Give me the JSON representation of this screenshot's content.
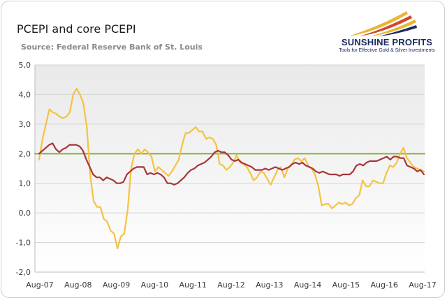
{
  "title": "PCEPI and core PCEPI",
  "subtitle": "Source: Federal Reserve Bank of St. Louis",
  "logo": {
    "name": "SUNSHINE PROFITS",
    "tagline": "Tools for Effective Gold & Silver Investments"
  },
  "colors": {
    "pcepi": "#f5c242",
    "core": "#a8353a",
    "target": "#8cb33e",
    "plot_bg_top": "#e9e9e9",
    "plot_bg_bottom": "#ffffff"
  },
  "chart_data": {
    "type": "line",
    "title": "PCEPI and core PCEPI",
    "xlabel": "",
    "ylabel": "",
    "ylim": [
      -2.0,
      5.0
    ],
    "yticks": [
      "5,0",
      "4,0",
      "3,0",
      "2,0",
      "1,0",
      "0,0",
      "-1,0",
      "-2,0"
    ],
    "xticks": [
      "Aug-07",
      "Aug-08",
      "Aug-09",
      "Aug-10",
      "Aug-11",
      "Aug-12",
      "Aug-13",
      "Aug-14",
      "Aug-15",
      "Aug-16",
      "Aug-17"
    ],
    "grid": "horizontal",
    "x_start": "Aug-07",
    "x_end": "Aug-17",
    "target_line": 2.0,
    "series": [
      {
        "color": "#f5c242",
        "values": [
          1.8,
          2.5,
          3.0,
          3.5,
          3.4,
          3.35,
          3.25,
          3.2,
          3.25,
          3.4,
          4.0,
          4.2,
          4.0,
          3.7,
          2.9,
          1.3,
          0.4,
          0.2,
          0.2,
          -0.2,
          -0.3,
          -0.6,
          -0.7,
          -1.2,
          -0.8,
          -0.7,
          0.1,
          1.5,
          2.0,
          2.15,
          2.0,
          2.15,
          2.05,
          1.9,
          1.4,
          1.55,
          1.45,
          1.35,
          1.25,
          1.4,
          1.6,
          1.8,
          2.3,
          2.7,
          2.7,
          2.8,
          2.9,
          2.75,
          2.75,
          2.5,
          2.55,
          2.5,
          2.3,
          1.65,
          1.6,
          1.45,
          1.55,
          1.7,
          1.95,
          1.7,
          1.65,
          1.55,
          1.35,
          1.1,
          1.2,
          1.4,
          1.35,
          1.15,
          0.95,
          1.2,
          1.45,
          1.55,
          1.2,
          1.5,
          1.6,
          1.8,
          1.85,
          1.75,
          1.85,
          1.6,
          1.5,
          1.3,
          0.9,
          0.25,
          0.3,
          0.3,
          0.15,
          0.25,
          0.35,
          0.3,
          0.35,
          0.25,
          0.3,
          0.5,
          0.6,
          1.1,
          0.9,
          0.9,
          1.1,
          1.05,
          1.0,
          1.0,
          1.35,
          1.6,
          1.55,
          1.7,
          2.0,
          2.2,
          1.85,
          1.7,
          1.55,
          1.5,
          1.45,
          1.4
        ]
      },
      {
        "color": "#a8353a",
        "values": [
          2.0,
          2.1,
          2.2,
          2.3,
          2.35,
          2.15,
          2.05,
          2.15,
          2.2,
          2.3,
          2.3,
          2.3,
          2.25,
          2.1,
          1.8,
          1.55,
          1.3,
          1.2,
          1.2,
          1.1,
          1.2,
          1.15,
          1.1,
          1.0,
          1.0,
          1.05,
          1.3,
          1.4,
          1.5,
          1.55,
          1.55,
          1.55,
          1.3,
          1.35,
          1.3,
          1.35,
          1.3,
          1.2,
          1.0,
          1.0,
          0.95,
          1.0,
          1.1,
          1.2,
          1.35,
          1.45,
          1.5,
          1.6,
          1.65,
          1.7,
          1.8,
          1.9,
          2.05,
          2.1,
          2.05,
          2.05,
          1.95,
          1.8,
          1.75,
          1.8,
          1.7,
          1.65,
          1.6,
          1.55,
          1.45,
          1.45,
          1.45,
          1.5,
          1.45,
          1.5,
          1.55,
          1.5,
          1.45,
          1.5,
          1.55,
          1.65,
          1.7,
          1.65,
          1.7,
          1.6,
          1.55,
          1.5,
          1.4,
          1.35,
          1.4,
          1.35,
          1.3,
          1.3,
          1.3,
          1.25,
          1.3,
          1.3,
          1.3,
          1.4,
          1.6,
          1.65,
          1.6,
          1.7,
          1.75,
          1.75,
          1.75,
          1.8,
          1.85,
          1.9,
          1.8,
          1.9,
          1.9,
          1.85,
          1.85,
          1.6,
          1.55,
          1.5,
          1.4,
          1.45,
          1.3
        ]
      },
      {
        "color": "#8cb33e",
        "values": [
          2.0,
          2.0
        ]
      }
    ]
  }
}
